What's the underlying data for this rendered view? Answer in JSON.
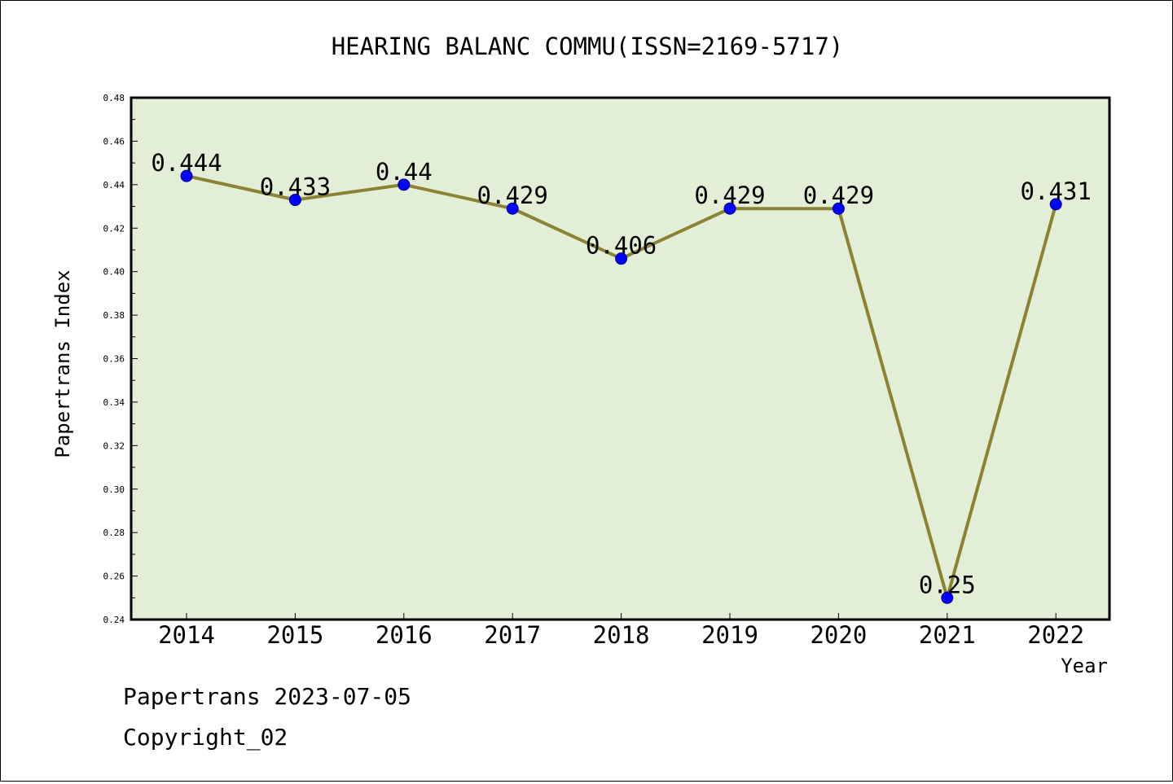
{
  "colors": {
    "plot_background": "#e2efd6",
    "line": "#8c8233",
    "marker": "#0000ff"
  },
  "chart_data": {
    "type": "line",
    "title": "HEARING BALANC COMMU(ISSN=2169-5717)",
    "xlabel": "Year",
    "ylabel": "Papertrans Index",
    "categories": [
      "2014",
      "2015",
      "2016",
      "2017",
      "2018",
      "2019",
      "2020",
      "2021",
      "2022"
    ],
    "values": [
      0.444,
      0.433,
      0.44,
      0.429,
      0.406,
      0.429,
      0.429,
      0.25,
      0.431
    ],
    "data_labels": [
      "0.444",
      "0.433",
      "0.44",
      "0.429",
      "0.406",
      "0.429",
      "0.429",
      "0.25",
      "0.431"
    ],
    "ylim": [
      0.24,
      0.48
    ],
    "yticks": [
      "0.24",
      "0.26",
      "0.28",
      "0.30",
      "0.32",
      "0.34",
      "0.36",
      "0.38",
      "0.40",
      "0.42",
      "0.44",
      "0.46",
      "0.48"
    ],
    "grid": false,
    "legend": "none"
  },
  "footer": {
    "line1": "Papertrans 2023-07-05",
    "line2": "Copyright_02"
  }
}
